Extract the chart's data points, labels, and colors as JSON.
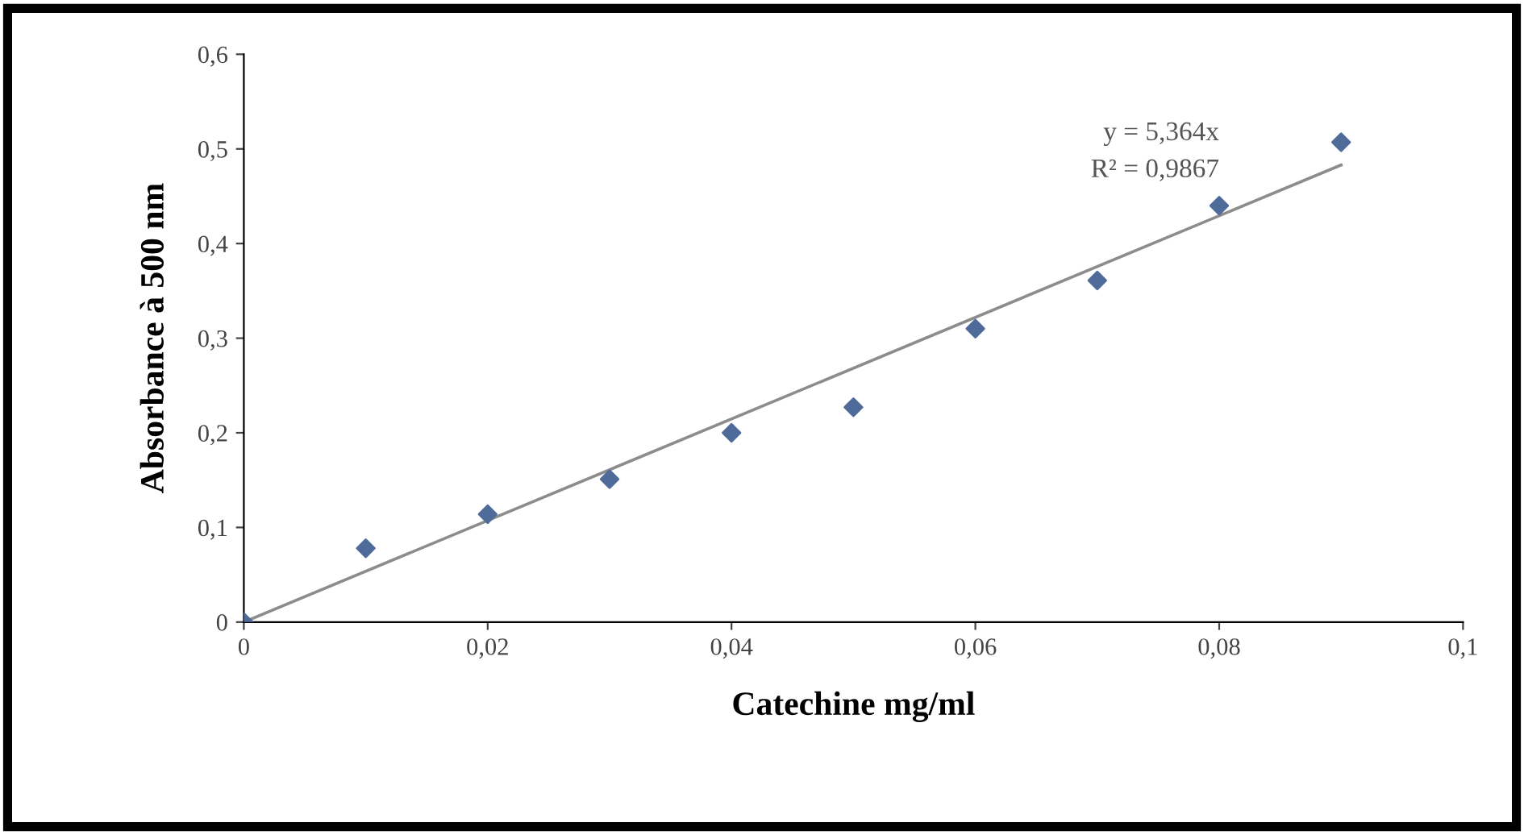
{
  "chart_data": {
    "type": "scatter",
    "xlabel": "Catechine mg/ml",
    "ylabel": "Absorbance à 500 nm",
    "x": [
      0,
      0.01,
      0.02,
      0.03,
      0.04,
      0.05,
      0.06,
      0.07,
      0.08,
      0.09
    ],
    "series": [
      {
        "color": "#4f6b9a",
        "marker": "diamond",
        "values": [
          0,
          0.078,
          0.114,
          0.151,
          0.2,
          0.227,
          0.31,
          0.361,
          0.44,
          0.507
        ]
      },
      {
        "type": "line",
        "color": "#8c8c8c",
        "x": [
          0,
          0.09
        ],
        "values": [
          0,
          0.483
        ]
      }
    ],
    "annotations": [
      "y = 5,364x",
      "R² = 0,9867"
    ],
    "xlim": [
      0,
      0.1
    ],
    "ylim": [
      0,
      0.6
    ],
    "xticks": [
      0,
      {
        "value": 0.02,
        "label": "0,02"
      },
      {
        "value": 0.04,
        "label": "0,04"
      },
      {
        "value": 0.06,
        "label": "0,06"
      },
      {
        "value": 0.08,
        "label": "0,08"
      },
      {
        "value": 0.1,
        "label": "0,1"
      }
    ],
    "yticks": [
      0,
      {
        "value": 0.1,
        "label": "0,1"
      },
      {
        "value": 0.2,
        "label": "0,2"
      },
      {
        "value": 0.3,
        "label": "0,3"
      },
      {
        "value": 0.4,
        "label": "0,4"
      },
      {
        "value": 0.5,
        "label": "0,5"
      },
      {
        "value": 0.6,
        "label": "0,6"
      }
    ],
    "grid": false
  }
}
